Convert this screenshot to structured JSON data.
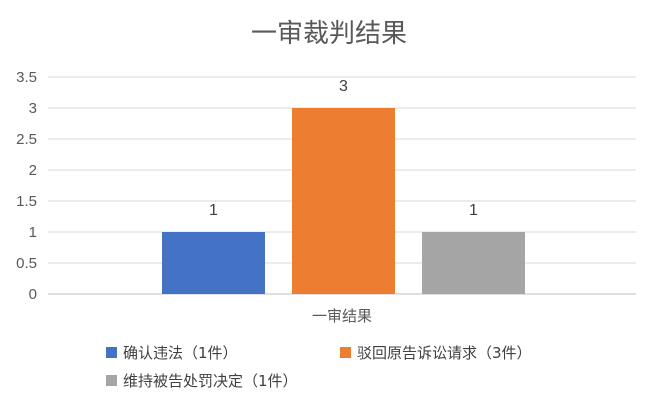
{
  "chart_data": {
    "type": "bar",
    "title": "一审裁判结果",
    "xlabel": "",
    "ylabel": "",
    "categories": [
      "一审结果"
    ],
    "series": [
      {
        "name": "确认违法（1件）",
        "values": [
          1
        ],
        "color": "#4472c4"
      },
      {
        "name": "驳回原告诉讼请求（3件）",
        "values": [
          3
        ],
        "color": "#ed7d31"
      },
      {
        "name": "维持被告处罚决定（1件）",
        "values": [
          1
        ],
        "color": "#a5a5a5"
      }
    ],
    "ylim": [
      0,
      3.5
    ],
    "yticks": [
      "0",
      "0.5",
      "1",
      "1.5",
      "2",
      "2.5",
      "3",
      "3.5"
    ],
    "data_labels": [
      "1",
      "3",
      "1"
    ],
    "grid": true,
    "legend_position": "bottom"
  }
}
